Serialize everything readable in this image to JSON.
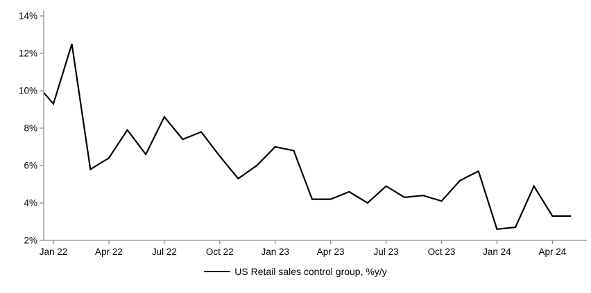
{
  "chart_data": {
    "type": "line",
    "title": "",
    "legend": "US Retail sales control group, %y/y",
    "legend_position": "bottom-center",
    "grid": false,
    "ylim": [
      2,
      14
    ],
    "y_tick_labels": [
      "2%",
      "4%",
      "6%",
      "8%",
      "10%",
      "12%",
      "14%"
    ],
    "y_tick_values": [
      2,
      4,
      6,
      8,
      10,
      12,
      14
    ],
    "x_tick_labels": [
      "Jan 22",
      "Apr 22",
      "Jul 22",
      "Oct 22",
      "Jan 23",
      "Apr 23",
      "Jul 23",
      "Oct 23",
      "Jan 24",
      "Apr 24"
    ],
    "x_tick_month_indices": [
      0,
      3,
      6,
      9,
      12,
      15,
      18,
      21,
      24,
      27
    ],
    "x": [
      "Jan 22",
      "Feb 22",
      "Mar 22",
      "Apr 22",
      "May 22",
      "Jun 22",
      "Jul 22",
      "Aug 22",
      "Sep 22",
      "Oct 22",
      "Nov 22",
      "Dec 22",
      "Jan 23",
      "Feb 23",
      "Mar 23",
      "Apr 23",
      "May 23",
      "Jun 23",
      "Jul 23",
      "Aug 23",
      "Sep 23",
      "Oct 23",
      "Nov 23",
      "Dec 23",
      "Jan 24",
      "Feb 24",
      "Mar 24",
      "Apr 24",
      "May 24"
    ],
    "values": [
      9.3,
      12.5,
      5.8,
      6.4,
      7.9,
      6.6,
      8.6,
      7.4,
      7.8,
      6.5,
      5.3,
      6.0,
      7.0,
      6.8,
      4.2,
      4.2,
      4.6,
      4.0,
      4.9,
      4.3,
      4.4,
      4.1,
      5.2,
      5.7,
      2.6,
      2.7,
      4.9,
      3.3,
      3.3
    ],
    "left_edge_entry_value": 9.9,
    "line_color": "#000000",
    "axis_color": "#8c8c8c"
  }
}
